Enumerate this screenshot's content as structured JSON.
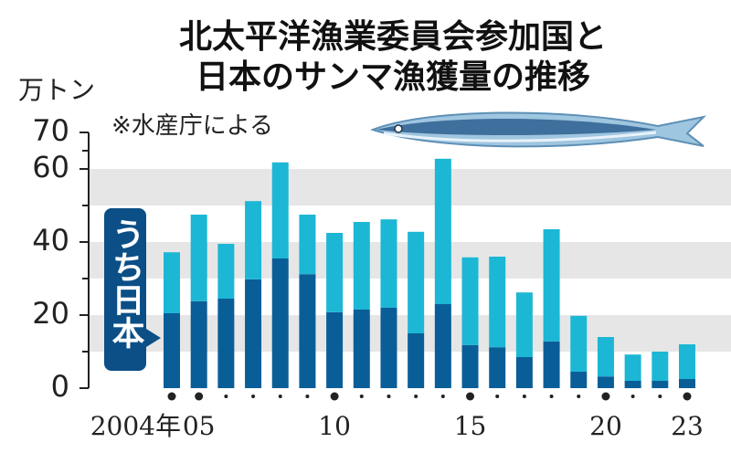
{
  "chart_data": {
    "type": "stacked-bar",
    "title": [
      "北太平洋漁業委員会参加国と",
      "日本のサンマ漁獲量の推移"
    ],
    "y_label": "万トン",
    "note": "※水産庁による",
    "categories": [
      "2004年",
      "05",
      null,
      null,
      null,
      null,
      "10",
      null,
      null,
      null,
      null,
      "15",
      null,
      null,
      null,
      null,
      "20",
      null,
      null,
      "23"
    ],
    "series": [
      {
        "name": "うち日本",
        "color": "#0a5e98",
        "values": [
          20.5,
          23.8,
          24.5,
          29.8,
          35.5,
          31.2,
          20.8,
          21.5,
          22,
          15,
          23,
          11.8,
          11.2,
          8.5,
          12.8,
          4.5,
          3.2,
          2,
          2,
          2.5
        ]
      },
      {
        "color": "#1cb7d5",
        "values": [
          16.7,
          23.7,
          15,
          21.4,
          26.3,
          16.3,
          21.7,
          24,
          24.2,
          27.8,
          39.8,
          24,
          24.8,
          17.7,
          30.7,
          15.3,
          10.8,
          7.2,
          8,
          9.5
        ]
      }
    ],
    "ylim": [
      0,
      70
    ],
    "yticks": [
      0,
      20,
      40,
      60,
      70
    ]
  }
}
